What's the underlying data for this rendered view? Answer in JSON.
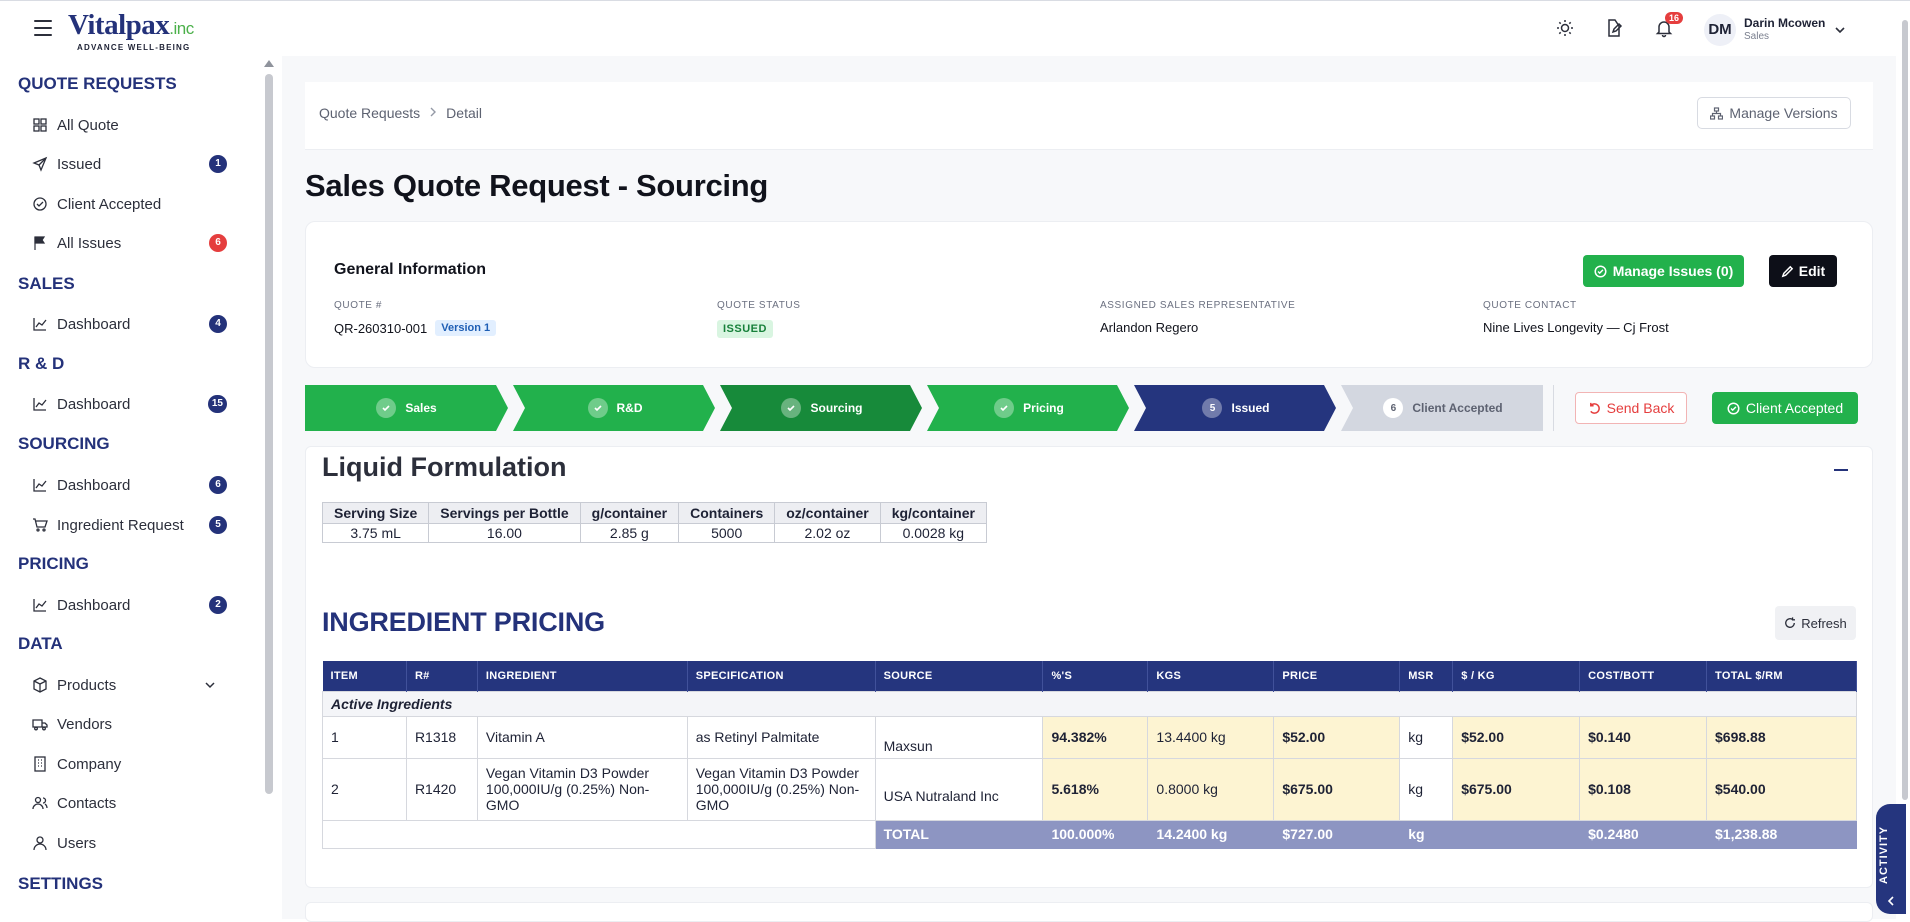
{
  "brand": {
    "name": "Vitalpax",
    "suffix": ".inc",
    "tagline": "ADVANCE WELL-BEING"
  },
  "topbar": {
    "notifications_count": "16",
    "user": {
      "initials": "DM",
      "name": "Darin Mcowen",
      "role": "Sales"
    },
    "icons": [
      "sun-icon",
      "file-edit-icon",
      "bell-icon",
      "chevron-down-icon"
    ]
  },
  "sidebar": {
    "sections": [
      {
        "title": "QUOTE REQUESTS",
        "items": [
          {
            "label": "All Quote",
            "icon": "grid-icon",
            "badge": ""
          },
          {
            "label": "Issued",
            "icon": "send-icon",
            "badge": "1"
          },
          {
            "label": "Client Accepted",
            "icon": "check-circle-icon",
            "badge": ""
          },
          {
            "label": "All Issues",
            "icon": "flag-icon",
            "badge": "6",
            "badge_color": "#e53e3e"
          }
        ]
      },
      {
        "title": "SALES",
        "items": [
          {
            "label": "Dashboard",
            "icon": "chart-line-icon",
            "badge": "4"
          }
        ]
      },
      {
        "title": "R & D",
        "items": [
          {
            "label": "Dashboard",
            "icon": "chart-line-icon",
            "badge": "15"
          }
        ]
      },
      {
        "title": "SOURCING",
        "items": [
          {
            "label": "Dashboard",
            "icon": "chart-line-icon",
            "badge": "6"
          },
          {
            "label": "Ingredient Request",
            "icon": "cart-icon",
            "badge": "5"
          }
        ]
      },
      {
        "title": "PRICING",
        "items": [
          {
            "label": "Dashboard",
            "icon": "chart-line-icon",
            "badge": "2"
          }
        ]
      },
      {
        "title": "DATA",
        "items": [
          {
            "label": "Products",
            "icon": "box-icon",
            "badge": ""
          },
          {
            "label": "Vendors",
            "icon": "truck-icon",
            "badge": ""
          },
          {
            "label": "Company",
            "icon": "building-icon",
            "badge": ""
          },
          {
            "label": "Contacts",
            "icon": "users-icon",
            "badge": ""
          },
          {
            "label": "Users",
            "icon": "user-icon",
            "badge": ""
          }
        ]
      },
      {
        "title": "SETTINGS",
        "items": []
      }
    ]
  },
  "breadcrumb": {
    "root": "Quote Requests",
    "current": "Detail"
  },
  "manage_versions_label": "Manage Versions",
  "page_title": "Sales Quote Request - Sourcing",
  "general_info": {
    "title": "General Information",
    "manage_issues_label": "Manage Issues (0)",
    "edit_label": "Edit",
    "quote_label": "QUOTE #",
    "quote_value": "QR-260310-001",
    "version_label": "Version 1",
    "status_label": "QUOTE STATUS",
    "status_value": "ISSUED",
    "rep_label": "ASSIGNED SALES REPRESENTATIVE",
    "rep_value": "Arlandon Regero",
    "contact_label": "QUOTE CONTACT",
    "contact_value": "Nine Lives Longevity — Cj Frost"
  },
  "stepper": {
    "steps": [
      {
        "label": "Sales",
        "state": "done"
      },
      {
        "label": "R&D",
        "state": "done"
      },
      {
        "label": "Sourcing",
        "state": "done-active"
      },
      {
        "label": "Pricing",
        "state": "done"
      },
      {
        "label": "Issued",
        "state": "current",
        "number": "5"
      },
      {
        "label": "Client Accepted",
        "state": "pending",
        "number": "6"
      }
    ],
    "colors": {
      "done": "#22b14c",
      "done_active": "#178a3a",
      "current": "#25357e",
      "pending": "#d3d7e0"
    },
    "send_back_label": "Send Back",
    "client_accepted_label": "Client Accepted"
  },
  "formulation": {
    "title": "Liquid Formulation",
    "serving_headers": [
      "Serving Size",
      "Servings per Bottle",
      "g/container",
      "Containers",
      "oz/container",
      "kg/container"
    ],
    "serving_values": [
      "3.75 mL",
      "16.00",
      "2.85 g",
      "5000",
      "2.02 oz",
      "0.0028 kg"
    ]
  },
  "ingredient_pricing": {
    "title": "INGREDIENT PRICING",
    "refresh_label": "Refresh",
    "headers": [
      "ITEM",
      "R#",
      "INGREDIENT",
      "SPECIFICATION",
      "SOURCE",
      "%'S",
      "KGS",
      "PRICE",
      "MSR",
      "$ / KG",
      "COST/BOTT",
      "TOTAL $/RM"
    ],
    "group_label": "Active Ingredients",
    "rows": [
      [
        "1",
        "R1318",
        "Vitamin A",
        "as Retinyl Palmitate",
        "Maxsun",
        "94.382%",
        "13.4400 kg",
        "$52.00",
        "kg",
        "$52.00",
        "$0.140",
        "$698.88"
      ],
      [
        "2",
        "R1420",
        "Vegan Vitamin D3 Powder 100,000IU/g (0.25%) Non-GMO",
        "Vegan Vitamin D3 Powder 100,000IU/g (0.25%) Non-GMO",
        "USA Nutraland Inc",
        "5.618%",
        "0.8000 kg",
        "$675.00",
        "kg",
        "$675.00",
        "$0.108",
        "$540.00"
      ]
    ],
    "total": [
      "TOTAL",
      "100.000%",
      "14.2400 kg",
      "$727.00",
      "kg",
      "",
      "$0.2480",
      "$1,238.88"
    ]
  },
  "activity_label": "ACTIVITY"
}
